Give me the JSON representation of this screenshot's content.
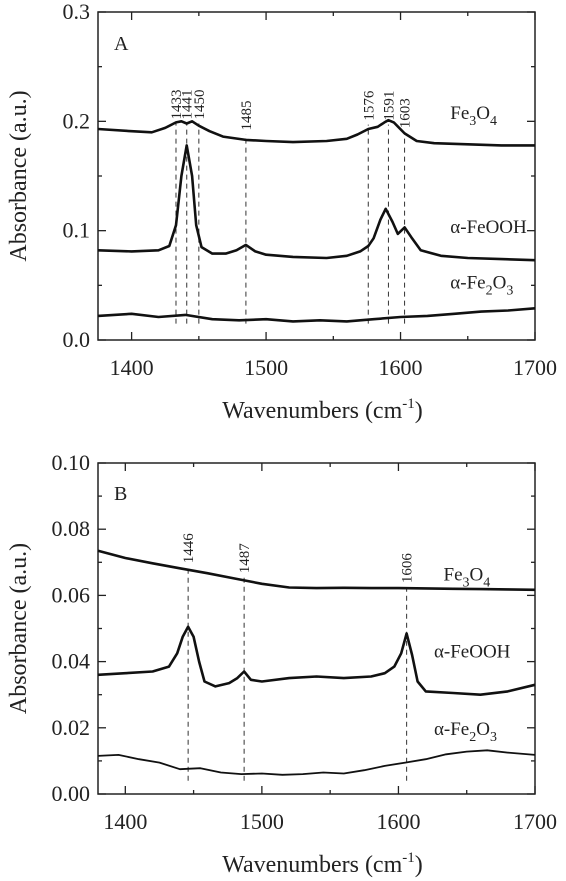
{
  "chart_data": [
    {
      "type": "line",
      "panel_label": "A",
      "xlabel": "Wavenumbers (cm",
      "xlabel_sup": "-1",
      "xlabel_end": ")",
      "ylabel": "Absorbance (a.u.)",
      "xlim": [
        1375,
        1700
      ],
      "ylim": [
        0.0,
        0.3
      ],
      "xticks": [
        1400,
        1500,
        1600,
        1700
      ],
      "yticks": [
        0.0,
        0.1,
        0.2,
        0.3
      ],
      "ytick_labels": [
        "0.0",
        "0.1",
        "0.2",
        "0.3"
      ],
      "peaks": [
        {
          "x": 1433,
          "label": "1433",
          "y_top": 0.198
        },
        {
          "x": 1441,
          "label": "1441",
          "y_top": 0.198
        },
        {
          "x": 1450,
          "label": "1450",
          "y_top": 0.198
        },
        {
          "x": 1485,
          "label": "1485",
          "y_top": 0.188
        },
        {
          "x": 1576,
          "label": "1576",
          "y_top": 0.197
        },
        {
          "x": 1591,
          "label": "1591",
          "y_top": 0.197
        },
        {
          "x": 1603,
          "label": "1603",
          "y_top": 0.19
        }
      ],
      "peak_line_bottom": 0.015,
      "series": [
        {
          "label_parts": [
            [
              "Fe",
              "base"
            ],
            [
              "3",
              "sub"
            ],
            [
              "O",
              "base"
            ],
            [
              "4",
              "sub"
            ]
          ],
          "label_pos": [
            1637,
            0.202
          ],
          "x": [
            1375,
            1400,
            1415,
            1425,
            1433,
            1437,
            1441,
            1445,
            1450,
            1458,
            1468,
            1485,
            1500,
            1520,
            1545,
            1560,
            1568,
            1576,
            1583,
            1588,
            1591,
            1595,
            1603,
            1612,
            1625,
            1650,
            1675,
            1700
          ],
          "y": [
            0.193,
            0.191,
            0.19,
            0.194,
            0.199,
            0.2,
            0.198,
            0.2,
            0.196,
            0.191,
            0.186,
            0.183,
            0.182,
            0.181,
            0.182,
            0.184,
            0.188,
            0.193,
            0.195,
            0.199,
            0.201,
            0.199,
            0.189,
            0.182,
            0.18,
            0.179,
            0.178,
            0.178
          ]
        },
        {
          "label_parts": [
            [
              "α-FeOOH",
              "base"
            ]
          ],
          "label_pos": [
            1637,
            0.098
          ],
          "x": [
            1375,
            1400,
            1420,
            1428,
            1433,
            1437,
            1441,
            1445,
            1448,
            1452,
            1460,
            1470,
            1478,
            1485,
            1492,
            1500,
            1520,
            1545,
            1560,
            1570,
            1576,
            1580,
            1585,
            1589,
            1594,
            1598,
            1603,
            1608,
            1615,
            1630,
            1650,
            1675,
            1700
          ],
          "y": [
            0.082,
            0.081,
            0.082,
            0.086,
            0.105,
            0.15,
            0.178,
            0.15,
            0.105,
            0.085,
            0.079,
            0.079,
            0.082,
            0.087,
            0.081,
            0.078,
            0.076,
            0.075,
            0.077,
            0.081,
            0.086,
            0.093,
            0.11,
            0.12,
            0.108,
            0.097,
            0.103,
            0.094,
            0.082,
            0.077,
            0.075,
            0.074,
            0.073
          ]
        },
        {
          "label_parts": [
            [
              "α-Fe",
              "base"
            ],
            [
              "2",
              "sub"
            ],
            [
              "O",
              "base"
            ],
            [
              "3",
              "sub"
            ]
          ],
          "label_pos": [
            1637,
            0.047
          ],
          "x": [
            1375,
            1400,
            1420,
            1440,
            1460,
            1480,
            1500,
            1520,
            1540,
            1560,
            1580,
            1600,
            1620,
            1640,
            1660,
            1680,
            1700
          ],
          "y": [
            0.022,
            0.024,
            0.021,
            0.023,
            0.019,
            0.018,
            0.019,
            0.017,
            0.018,
            0.017,
            0.019,
            0.021,
            0.022,
            0.024,
            0.026,
            0.027,
            0.029
          ]
        }
      ]
    },
    {
      "type": "line",
      "panel_label": "B",
      "xlabel": "Wavenumbers (cm",
      "xlabel_sup": "-1",
      "xlabel_end": ")",
      "ylabel": "Absorbance (a.u.)",
      "xlim": [
        1380,
        1700
      ],
      "ylim": [
        0.0,
        0.1
      ],
      "xticks": [
        1400,
        1500,
        1600,
        1700
      ],
      "yticks": [
        0.0,
        0.02,
        0.04,
        0.06,
        0.08,
        0.1
      ],
      "ytick_labels": [
        "0.00",
        "0.02",
        "0.04",
        "0.06",
        "0.08",
        "0.10"
      ],
      "peaks": [
        {
          "x": 1446,
          "label": "1446",
          "y_top": 0.0685
        },
        {
          "x": 1487,
          "label": "1487",
          "y_top": 0.0655
        },
        {
          "x": 1606,
          "label": "1606",
          "y_top": 0.0625
        }
      ],
      "peak_line_bottom": 0.004,
      "series": [
        {
          "label_parts": [
            [
              "Fe",
              "base"
            ],
            [
              "3",
              "sub"
            ],
            [
              "O",
              "base"
            ],
            [
              "4",
              "sub"
            ]
          ],
          "label_pos": [
            1633,
            0.0645
          ],
          "x": [
            1380,
            1400,
            1420,
            1440,
            1460,
            1480,
            1500,
            1520,
            1540,
            1560,
            1580,
            1600,
            1620,
            1640,
            1660,
            1680,
            1700
          ],
          "y": [
            0.0735,
            0.0713,
            0.0697,
            0.0682,
            0.0667,
            0.0651,
            0.0635,
            0.0624,
            0.0622,
            0.0623,
            0.0622,
            0.0622,
            0.0621,
            0.062,
            0.0619,
            0.0618,
            0.0617
          ]
        },
        {
          "label_parts": [
            [
              "α-FeOOH",
              "base"
            ]
          ],
          "label_pos": [
            1626,
            0.0412
          ],
          "x": [
            1380,
            1400,
            1420,
            1432,
            1438,
            1442,
            1446,
            1450,
            1454,
            1458,
            1466,
            1476,
            1482,
            1487,
            1492,
            1500,
            1520,
            1540,
            1560,
            1580,
            1590,
            1597,
            1602,
            1606,
            1610,
            1614,
            1620,
            1640,
            1660,
            1680,
            1700
          ],
          "y": [
            0.036,
            0.0365,
            0.037,
            0.0385,
            0.0425,
            0.0475,
            0.0505,
            0.0475,
            0.04,
            0.034,
            0.0325,
            0.0335,
            0.035,
            0.037,
            0.0345,
            0.034,
            0.035,
            0.0355,
            0.035,
            0.0355,
            0.0365,
            0.0385,
            0.0425,
            0.0485,
            0.042,
            0.034,
            0.031,
            0.0305,
            0.03,
            0.031,
            0.033
          ]
        },
        {
          "label_parts": [
            [
              "α-Fe",
              "base"
            ],
            [
              "2",
              "sub"
            ],
            [
              "O",
              "base"
            ],
            [
              "3",
              "sub"
            ]
          ],
          "label_pos": [
            1626,
            0.0178
          ],
          "x": [
            1380,
            1395,
            1410,
            1425,
            1440,
            1455,
            1470,
            1485,
            1500,
            1515,
            1530,
            1545,
            1560,
            1575,
            1590,
            1605,
            1620,
            1635,
            1650,
            1665,
            1680,
            1700
          ],
          "y": [
            0.0115,
            0.0118,
            0.0105,
            0.0095,
            0.0075,
            0.0078,
            0.0065,
            0.006,
            0.0062,
            0.0058,
            0.006,
            0.0065,
            0.0062,
            0.0072,
            0.0085,
            0.0095,
            0.0105,
            0.012,
            0.0128,
            0.0132,
            0.0125,
            0.0118
          ]
        }
      ]
    }
  ]
}
